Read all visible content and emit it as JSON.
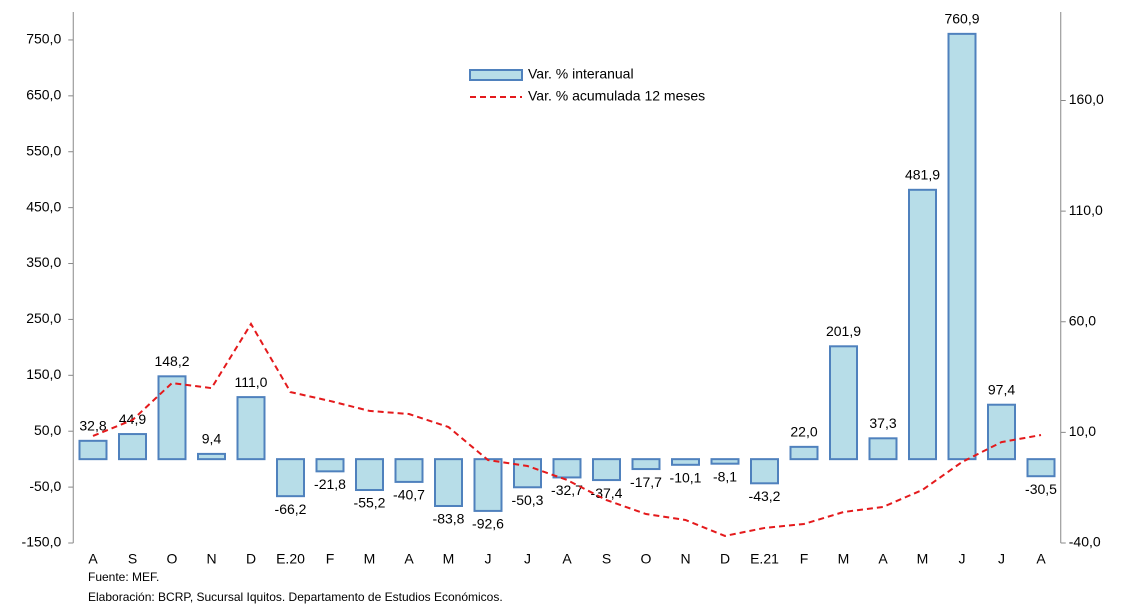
{
  "chart_data": {
    "type": "bar",
    "categories": [
      "A",
      "S",
      "O",
      "N",
      "D",
      "E.20",
      "F",
      "M",
      "A",
      "M",
      "J",
      "J",
      "A",
      "S",
      "O",
      "N",
      "D",
      "E.21",
      "F",
      "M",
      "A",
      "M",
      "J",
      "J",
      "A"
    ],
    "series": [
      {
        "name": "Var. % interanual",
        "type": "bar",
        "color": "#b7dde8",
        "edge": "#4f81bd",
        "values": [
          32.8,
          44.9,
          148.2,
          9.4,
          111.0,
          -66.2,
          -21.8,
          -55.2,
          -40.7,
          -83.8,
          -92.6,
          -50.3,
          -32.7,
          -37.4,
          -17.7,
          -10.1,
          -8.1,
          -43.2,
          22.0,
          201.9,
          37.3,
          481.9,
          760.9,
          97.4,
          -30.5
        ],
        "value_labels": [
          "32,8",
          "44,9",
          "148,2",
          "9,4",
          "111,0",
          "-66,2",
          "-21,8",
          "-55,2",
          "-40,7",
          "-83,8",
          "-92,6",
          "-50,3",
          "-32,7",
          "-37,4",
          "-17,7",
          "-10,1",
          "-8,1",
          "-43,2",
          "22,0",
          "201,9",
          "37,3",
          "481,9",
          "760,9",
          "97,4",
          "-30,5"
        ]
      },
      {
        "name": "Var. % acumulada 12 meses",
        "type": "line",
        "axis": "y2",
        "color": "#e41a1c",
        "dashed": true,
        "values": [
          8.4,
          15.6,
          32.3,
          30.0,
          59.0,
          28.2,
          24.2,
          19.7,
          18.3,
          12.4,
          -2.5,
          -5.2,
          -11.5,
          -20.6,
          -26.9,
          -29.6,
          -36.8,
          -33.2,
          -31.4,
          -26.0,
          -23.7,
          -16.0,
          -3.4,
          5.6,
          8.8
        ]
      }
    ],
    "ylim": [
      -150,
      800
    ],
    "yticks": [
      {
        "value": -150,
        "label": "-150,0"
      },
      {
        "value": -50,
        "label": "-50,0"
      },
      {
        "value": 50,
        "label": "50,0"
      },
      {
        "value": 150,
        "label": "150,0"
      },
      {
        "value": 250,
        "label": "250,0"
      },
      {
        "value": 350,
        "label": "350,0"
      },
      {
        "value": 450,
        "label": "450,0"
      },
      {
        "value": 550,
        "label": "550,0"
      },
      {
        "value": 650,
        "label": "650,0"
      },
      {
        "value": 750,
        "label": "750,0"
      }
    ],
    "y2lim": [
      -40,
      200
    ],
    "y2ticks": [
      {
        "value": -40,
        "label": "-40,0"
      },
      {
        "value": 10,
        "label": "10,0"
      },
      {
        "value": 60,
        "label": "60,0"
      },
      {
        "value": 110,
        "label": "110,0"
      },
      {
        "value": 160,
        "label": "160,0"
      }
    ],
    "notes": [
      "Fuente: MEF.",
      "Elaboración: BCRP, Sucursal Iquitos. Departamento de Estudios Económicos."
    ]
  }
}
